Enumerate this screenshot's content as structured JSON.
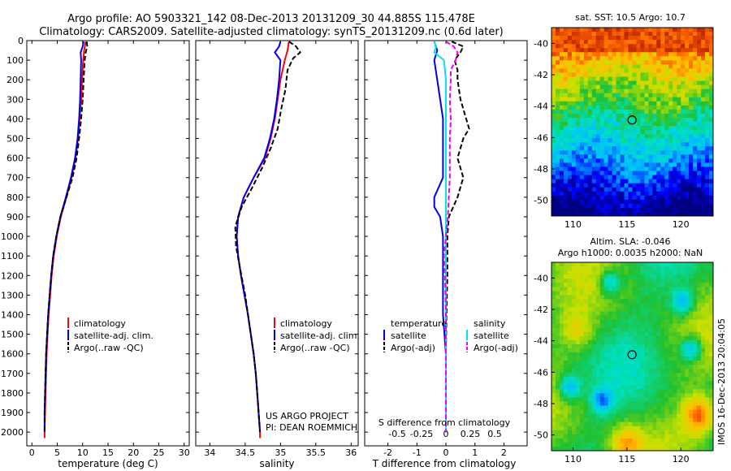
{
  "header": {
    "line1": "Argo profile: AO 5903321_142 08-Dec-2013 20131209_30 44.885S 115.478E",
    "line2": "Climatology: CARS2009. Satellite-adjusted climatology: synTS_20131209.nc (0.6d later)"
  },
  "credit": "US ARGO PROJECT\nPI: DEAN ROEMMICH",
  "watermark": "IMOS 16-Dec-2013 20:04:05",
  "chart_data": [
    {
      "type": "line",
      "id": "temperature",
      "xlabel": "temperature (deg C)",
      "ylabel": "",
      "xlim": [
        -1,
        31
      ],
      "ylim": [
        2070,
        0
      ],
      "xticks": [
        0,
        5,
        10,
        15,
        20,
        25,
        30
      ],
      "yticks": [
        0,
        100,
        200,
        300,
        400,
        500,
        600,
        700,
        800,
        900,
        1000,
        1100,
        1200,
        1300,
        1400,
        1500,
        1600,
        1700,
        1800,
        1900,
        2000
      ],
      "ytick_labels": [
        "0",
        "100",
        "200",
        "300",
        "400",
        "500",
        "600",
        "700",
        "800",
        "900",
        "1000",
        "1100",
        "1200",
        "1300",
        "1400",
        "1500",
        "1600",
        "1700",
        "1800",
        "1900",
        "2000"
      ],
      "legend": {
        "placement": "lower-left",
        "entries": [
          "climatology",
          "satellite-adj. clim.",
          "Argo(..raw -QC)"
        ]
      },
      "series": [
        {
          "name": "climatology",
          "color": "#ff0000",
          "style": "solid",
          "depth": [
            5,
            50,
            100,
            200,
            300,
            400,
            500,
            600,
            700,
            800,
            900,
            1000,
            1100,
            1200,
            1300,
            1400,
            1500,
            1600,
            1700,
            1800,
            1900,
            2000,
            2030
          ],
          "values": [
            10.6,
            10.3,
            10.1,
            9.9,
            9.7,
            9.4,
            9.1,
            8.6,
            7.8,
            6.8,
            5.7,
            4.9,
            4.3,
            3.9,
            3.6,
            3.3,
            3.1,
            2.9,
            2.8,
            2.7,
            2.6,
            2.5,
            2.5
          ]
        },
        {
          "name": "satellite-adj. clim.",
          "color": "#0000ee",
          "style": "solid",
          "depth": [
            5,
            30,
            60,
            100,
            200,
            300,
            400,
            500,
            600,
            700,
            800,
            900,
            1000,
            1100,
            1200,
            1300,
            1400,
            1500,
            1600,
            1700,
            1800,
            1900,
            2000
          ],
          "values": [
            10.2,
            10.0,
            9.6,
            9.7,
            9.6,
            9.5,
            9.3,
            9.0,
            8.5,
            7.7,
            6.7,
            5.6,
            4.8,
            4.2,
            3.8,
            3.5,
            3.2,
            3.0,
            2.8,
            2.7,
            2.6,
            2.5,
            2.5
          ]
        },
        {
          "name": "Argo(..raw -QC)",
          "color": "#000000",
          "style": "dashed",
          "depth": [
            5,
            30,
            60,
            100,
            200,
            300,
            400,
            500,
            600,
            700,
            800,
            900,
            1000,
            1100,
            1200,
            1300,
            1400,
            1500,
            1600,
            1700,
            1800,
            1900,
            2000
          ],
          "values": [
            10.8,
            10.9,
            10.6,
            10.4,
            10.2,
            10.0,
            9.7,
            9.3,
            8.8,
            8.0,
            6.8,
            5.6,
            4.8,
            4.2,
            3.8,
            3.5,
            3.2,
            3.0,
            2.8,
            2.7,
            2.6,
            2.5,
            2.5
          ]
        }
      ]
    },
    {
      "type": "line",
      "id": "salinity",
      "xlabel": "salinity",
      "ylabel": "",
      "xlim": [
        33.8,
        36.1
      ],
      "ylim": [
        2070,
        0
      ],
      "xticks": [
        34,
        34.5,
        35,
        35.5,
        36
      ],
      "legend": {
        "placement": "lower-right",
        "entries": [
          "climatology",
          "satellite-adj. clim.",
          "Argo(..raw -QC)"
        ]
      },
      "series": [
        {
          "name": "climatology",
          "color": "#ff0000",
          "style": "solid",
          "depth": [
            5,
            50,
            100,
            200,
            300,
            400,
            500,
            600,
            700,
            800,
            900,
            1000,
            1100,
            1200,
            1300,
            1400,
            1500,
            1600,
            1700,
            1800,
            1900,
            2000,
            2030
          ],
          "values": [
            35.12,
            35.1,
            35.06,
            35.0,
            34.96,
            34.92,
            34.86,
            34.78,
            34.62,
            34.48,
            34.4,
            34.38,
            34.4,
            34.44,
            34.49,
            34.54,
            34.58,
            34.62,
            34.65,
            34.67,
            34.69,
            34.71,
            34.71
          ]
        },
        {
          "name": "satellite-adj. clim.",
          "color": "#0000ee",
          "style": "solid",
          "depth": [
            5,
            30,
            60,
            100,
            200,
            300,
            400,
            500,
            600,
            700,
            800,
            900,
            1000,
            1100,
            1200,
            1300,
            1400,
            1500,
            1600,
            1700,
            1800,
            1900,
            2000
          ],
          "values": [
            35.0,
            34.98,
            34.92,
            35.0,
            34.98,
            34.95,
            34.91,
            34.85,
            34.77,
            34.62,
            34.48,
            34.4,
            34.38,
            34.4,
            34.44,
            34.49,
            34.54,
            34.58,
            34.62,
            34.65,
            34.67,
            34.69,
            34.71
          ]
        },
        {
          "name": "Argo(..raw -QC)",
          "color": "#000000",
          "style": "dashed",
          "depth": [
            5,
            30,
            60,
            90,
            150,
            250,
            350,
            450,
            550,
            650,
            750,
            850,
            950,
            1050,
            1150,
            1300,
            1400,
            1500,
            1600,
            1700,
            1800,
            1900,
            2000
          ],
          "values": [
            35.12,
            35.22,
            35.28,
            35.18,
            35.1,
            35.07,
            35.01,
            34.96,
            34.86,
            34.74,
            34.6,
            34.45,
            34.36,
            34.37,
            34.42,
            34.5,
            34.54,
            34.58,
            34.62,
            34.65,
            34.67,
            34.69,
            34.71
          ]
        }
      ]
    },
    {
      "type": "line",
      "id": "difference",
      "xlabel": "T difference from climatology",
      "xlabel2": "S difference from climatology",
      "xlim": [
        -2.8,
        2.8
      ],
      "ylim": [
        2070,
        0
      ],
      "xticks": [
        -2,
        -1,
        0,
        1,
        2
      ],
      "s_xticks": [
        -0.5,
        -0.25,
        0,
        0.25,
        0.5
      ],
      "s_xtick_labels": [
        "-0.5",
        "-0.25",
        "0",
        "0.25",
        "0.5"
      ],
      "legend_left": {
        "title": "temperature",
        "entries": [
          "satellite",
          "Argo(-adj)"
        ]
      },
      "legend_right": {
        "title": "salinity",
        "entries": [
          "satellite",
          "Argo(-adj)"
        ]
      },
      "series": [
        {
          "name": "T satellite",
          "color": "#0000ee",
          "style": "solid",
          "depth": [
            5,
            50,
            100,
            200,
            300,
            400,
            500,
            600,
            700,
            800,
            850,
            900,
            1000,
            1100,
            1200,
            1300,
            1400,
            1500,
            1600,
            1800,
            2000
          ],
          "values": [
            -0.4,
            -0.3,
            -0.4,
            -0.3,
            -0.2,
            -0.1,
            -0.1,
            -0.1,
            -0.1,
            -0.4,
            -0.4,
            -0.2,
            -0.1,
            -0.1,
            -0.1,
            -0.1,
            -0.1,
            -0.05,
            0,
            0,
            0
          ]
        },
        {
          "name": "T Argo(-adj)",
          "color": "#000000",
          "style": "dashed",
          "depth": [
            5,
            30,
            60,
            100,
            150,
            200,
            300,
            400,
            450,
            500,
            600,
            700,
            800,
            900,
            1000,
            1200,
            1400,
            1600,
            1800,
            2000
          ],
          "values": [
            0.2,
            0.6,
            0.5,
            0.3,
            0.4,
            0.4,
            0.5,
            0.7,
            0.8,
            0.6,
            0.4,
            0.6,
            0.4,
            0.1,
            0.05,
            0.05,
            0.02,
            0,
            0,
            0
          ]
        },
        {
          "name": "S satellite",
          "color": "#00e5e5",
          "style": "solid",
          "depth": [
            5,
            30,
            60,
            100,
            150,
            200,
            300,
            400,
            500,
            700,
            900,
            1200,
            1500,
            1800,
            2000
          ],
          "values": [
            -0.12,
            -0.1,
            -0.12,
            -0.02,
            -0.01,
            0.0,
            0.0,
            0.0,
            0.0,
            0.0,
            0.0,
            0.0,
            0.0,
            0.0,
            0.0
          ]
        },
        {
          "name": "S Argo(-adj)",
          "color": "#ee00ee",
          "style": "dashed",
          "depth": [
            5,
            30,
            60,
            100,
            150,
            200,
            300,
            400,
            500,
            600,
            700,
            800,
            900,
            1000,
            1100,
            1200,
            1400,
            1600,
            1800,
            2000
          ],
          "values": [
            0.0,
            0.08,
            0.12,
            0.1,
            0.05,
            0.05,
            0.04,
            0.05,
            0.04,
            0.04,
            0.04,
            0.03,
            0.02,
            0.0,
            -0.02,
            -0.01,
            0.0,
            0.0,
            0.0,
            0.0
          ]
        }
      ]
    },
    {
      "type": "heatmap",
      "id": "sst-map",
      "title": "sat. SST: 10.5  Argo: 10.7",
      "xlim": [
        108,
        123
      ],
      "ylim": [
        -51,
        -39
      ],
      "xticks": [
        110,
        115,
        120
      ],
      "yticks": [
        -40,
        -42,
        -44,
        -46,
        -48,
        -50
      ],
      "marker": {
        "lon": 115.478,
        "lat": -44.885
      }
    },
    {
      "type": "heatmap",
      "id": "sla-map",
      "title": "Altim. SLA: -0.046",
      "title2": "Argo h1000: 0.0035 h2000: NaN",
      "xlim": [
        108,
        123
      ],
      "ylim": [
        -51,
        -39
      ],
      "xticks": [
        110,
        115,
        120
      ],
      "yticks": [
        -40,
        -42,
        -44,
        -46,
        -48,
        -50
      ],
      "marker": {
        "lon": 115.478,
        "lat": -44.885
      }
    }
  ]
}
